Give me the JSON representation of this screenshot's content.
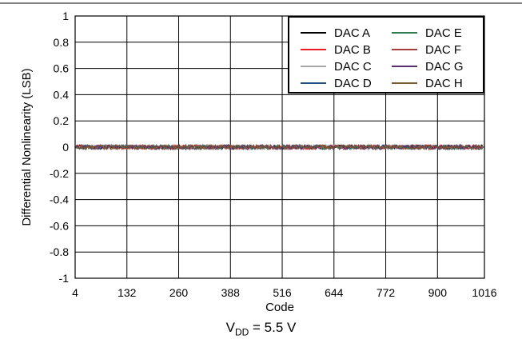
{
  "chart_data": {
    "type": "line",
    "xlabel": "Code",
    "ylabel": "Differential Nonlinearity (LSB)",
    "xlim": [
      4,
      1016
    ],
    "ylim": [
      -1,
      1
    ],
    "xticks": [
      4,
      132,
      260,
      388,
      516,
      644,
      772,
      900,
      1016
    ],
    "yticks": [
      1,
      0.8,
      0.6,
      0.4,
      0.2,
      0,
      -0.2,
      -0.4,
      -0.6,
      -0.8,
      -1
    ],
    "grid": true,
    "legend_position": "top-right",
    "x": [
      4,
      132,
      260,
      388,
      516,
      644,
      772,
      900,
      1016
    ],
    "series": [
      {
        "name": "DAC A",
        "color": "#000000",
        "values": [
          0,
          0,
          0,
          0,
          0,
          0,
          0,
          0,
          0
        ]
      },
      {
        "name": "DAC B",
        "color": "#ee1c24",
        "values": [
          0,
          0,
          0,
          0,
          0,
          0,
          0,
          0,
          0
        ]
      },
      {
        "name": "DAC C",
        "color": "#a8a8a8",
        "values": [
          0,
          0,
          0,
          0,
          0,
          0,
          0,
          0,
          0
        ]
      },
      {
        "name": "DAC D",
        "color": "#1e4f7e",
        "values": [
          0,
          0,
          0,
          0,
          0,
          0,
          0,
          0,
          0
        ]
      },
      {
        "name": "DAC E",
        "color": "#2e7d4f",
        "values": [
          0,
          0,
          0,
          0,
          0,
          0,
          0,
          0,
          0
        ]
      },
      {
        "name": "DAC F",
        "color": "#a43c3c",
        "values": [
          0,
          0,
          0,
          0,
          0,
          0,
          0,
          0,
          0
        ]
      },
      {
        "name": "DAC G",
        "color": "#5a2d6e",
        "values": [
          0,
          0,
          0,
          0,
          0,
          0,
          0,
          0,
          0
        ]
      },
      {
        "name": "DAC H",
        "color": "#7a5a32",
        "values": [
          0,
          0,
          0,
          0,
          0,
          0,
          0,
          0,
          0
        ]
      }
    ],
    "caption": {
      "main": "V",
      "sub": "DD",
      "rest": " = 5.5 V"
    }
  }
}
